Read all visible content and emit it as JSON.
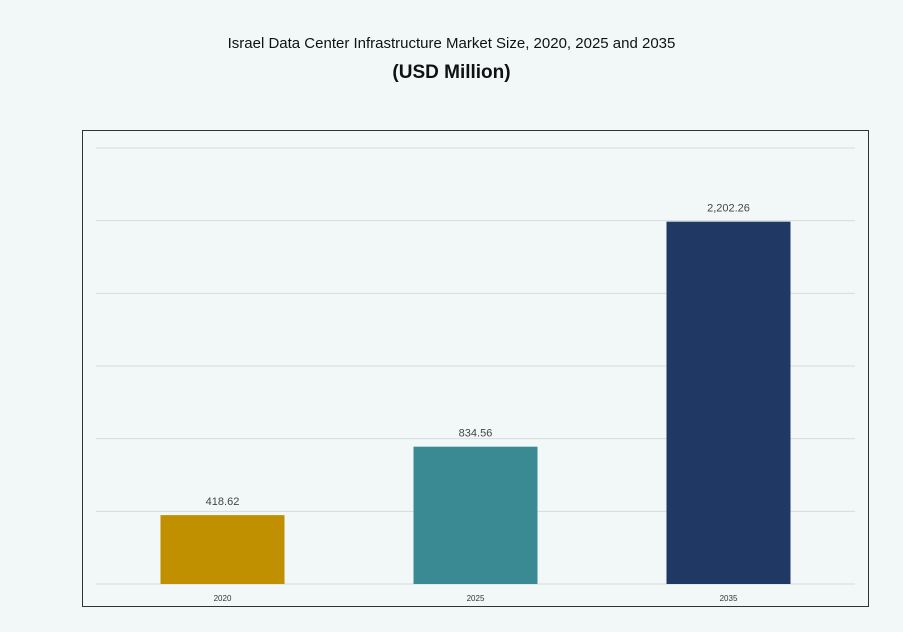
{
  "chart_data": {
    "type": "bar",
    "title": "Israel Data Center Infrastructure  Market Size, 2020, 2025 and 2035",
    "subtitle": "(USD Million)",
    "categories": [
      "2020",
      "2025",
      "2035"
    ],
    "values": [
      418.62,
      834.56,
      2202.26
    ],
    "value_labels": [
      "418.62",
      "834.56",
      "2,202.26"
    ],
    "colors": [
      "#c09000",
      "#3a8a94",
      "#1f3864"
    ],
    "xlabel": "",
    "ylabel": "",
    "ylim": [
      0,
      2650
    ],
    "grid": true,
    "legend": "none"
  }
}
